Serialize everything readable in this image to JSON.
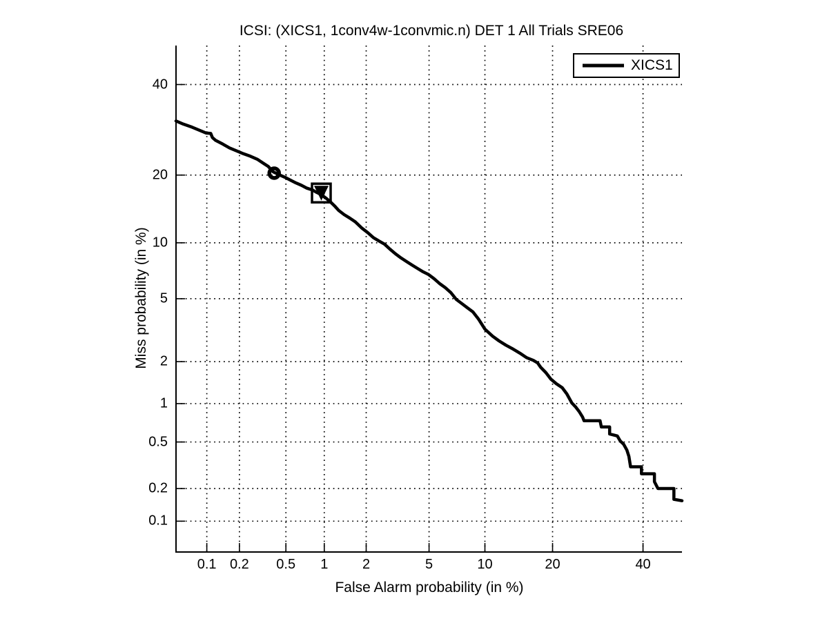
{
  "figure": {
    "background_color": "#ffffff",
    "foreground_color": "#000000"
  },
  "chart_data": {
    "type": "line",
    "variant": "DET curve (probit / normal-deviate scale on both axes)",
    "title": "ICSI: (XICS1, 1conv4w-1convmic.n) DET 1 All Trials SRE06",
    "xlabel": "False Alarm probability (in %)",
    "ylabel": "Miss probability (in %)",
    "xlim": [
      0.05,
      50
    ],
    "ylim": [
      0.05,
      50
    ],
    "xticks": [
      0.1,
      0.2,
      0.5,
      1,
      2,
      5,
      10,
      20,
      40
    ],
    "xtick_labels": [
      "0.1",
      "0.2",
      "0.5",
      "1",
      "2",
      "5",
      "10",
      "20",
      "40"
    ],
    "yticks": [
      0.1,
      0.2,
      0.5,
      1,
      2,
      5,
      10,
      20,
      40
    ],
    "ytick_labels": [
      "0.1",
      "0.2",
      "0.5",
      "1",
      "2",
      "5",
      "10",
      "20",
      "40"
    ],
    "grid": "dotted",
    "line_color": "#000000",
    "line_width": 4.5,
    "legend": {
      "position": "top-right",
      "entries": [
        {
          "label": "XICS1",
          "color": "#000000"
        }
      ]
    },
    "series": [
      {
        "name": "XICS1",
        "points": [
          [
            0.05,
            31.2
          ],
          [
            0.059,
            30.5
          ],
          [
            0.072,
            29.8
          ],
          [
            0.087,
            29.0
          ],
          [
            0.098,
            28.5
          ],
          [
            0.109,
            28.4
          ],
          [
            0.113,
            27.5
          ],
          [
            0.121,
            26.9
          ],
          [
            0.141,
            26.1
          ],
          [
            0.163,
            25.3
          ],
          [
            0.188,
            24.7
          ],
          [
            0.217,
            24.1
          ],
          [
            0.25,
            23.6
          ],
          [
            0.287,
            23.0
          ],
          [
            0.32,
            22.3
          ],
          [
            0.357,
            21.6
          ],
          [
            0.392,
            20.6
          ],
          [
            0.436,
            20.1
          ],
          [
            0.49,
            19.6
          ],
          [
            0.543,
            19.1
          ],
          [
            0.602,
            18.6
          ],
          [
            0.666,
            18.2
          ],
          [
            0.736,
            17.7
          ],
          [
            0.813,
            17.4
          ],
          [
            0.875,
            17.0
          ],
          [
            0.954,
            16.6
          ],
          [
            1.04,
            16.0
          ],
          [
            1.11,
            15.5
          ],
          [
            1.19,
            14.9
          ],
          [
            1.28,
            14.2
          ],
          [
            1.4,
            13.6
          ],
          [
            1.54,
            13.1
          ],
          [
            1.68,
            12.6
          ],
          [
            1.86,
            11.8
          ],
          [
            2.05,
            11.2
          ],
          [
            2.24,
            10.6
          ],
          [
            2.44,
            10.2
          ],
          [
            2.65,
            9.85
          ],
          [
            2.87,
            9.31
          ],
          [
            3.12,
            8.8
          ],
          [
            3.38,
            8.38
          ],
          [
            3.66,
            8.03
          ],
          [
            3.95,
            7.7
          ],
          [
            4.27,
            7.38
          ],
          [
            4.61,
            7.08
          ],
          [
            4.97,
            6.84
          ],
          [
            5.35,
            6.49
          ],
          [
            5.75,
            6.1
          ],
          [
            6.18,
            5.79
          ],
          [
            6.63,
            5.43
          ],
          [
            7.11,
            4.95
          ],
          [
            7.61,
            4.68
          ],
          [
            8.14,
            4.42
          ],
          [
            8.69,
            4.18
          ],
          [
            9.27,
            3.79
          ],
          [
            10.0,
            3.27
          ],
          [
            10.9,
            2.95
          ],
          [
            11.7,
            2.75
          ],
          [
            12.6,
            2.58
          ],
          [
            13.6,
            2.43
          ],
          [
            14.6,
            2.28
          ],
          [
            15.6,
            2.13
          ],
          [
            16.7,
            2.04
          ],
          [
            17.4,
            1.96
          ],
          [
            17.9,
            1.83
          ],
          [
            18.8,
            1.68
          ],
          [
            19.7,
            1.51
          ],
          [
            20.7,
            1.4
          ],
          [
            21.8,
            1.31
          ],
          [
            22.7,
            1.18
          ],
          [
            23.7,
            1.01
          ],
          [
            24.5,
            0.94
          ],
          [
            25.2,
            0.87
          ],
          [
            25.9,
            0.79
          ],
          [
            26.2,
            0.74
          ],
          [
            29.7,
            0.74
          ],
          [
            30.0,
            0.66
          ],
          [
            31.9,
            0.66
          ],
          [
            31.9,
            0.58
          ],
          [
            33.7,
            0.56
          ],
          [
            34.4,
            0.51
          ],
          [
            35.2,
            0.48
          ],
          [
            36.0,
            0.43
          ],
          [
            36.5,
            0.38
          ],
          [
            36.9,
            0.31
          ],
          [
            39.6,
            0.31
          ],
          [
            39.6,
            0.27
          ],
          [
            42.9,
            0.27
          ],
          [
            42.9,
            0.23
          ],
          [
            43.8,
            0.2
          ],
          [
            47.9,
            0.2
          ],
          [
            47.9,
            0.16
          ],
          [
            50.0,
            0.155
          ]
        ]
      }
    ],
    "markers": [
      {
        "shape": "open-circle",
        "x": 0.4,
        "y": 20.35,
        "size": 20,
        "stroke_width": 5.5,
        "color": "#000000"
      },
      {
        "shape": "open-square",
        "x": 0.95,
        "y": 16.9,
        "size": 27,
        "stroke_width": 3.5,
        "color": "#000000"
      },
      {
        "shape": "filled-triangle-down",
        "x": 0.95,
        "y": 16.9,
        "size": 21,
        "color": "#000000"
      }
    ]
  }
}
